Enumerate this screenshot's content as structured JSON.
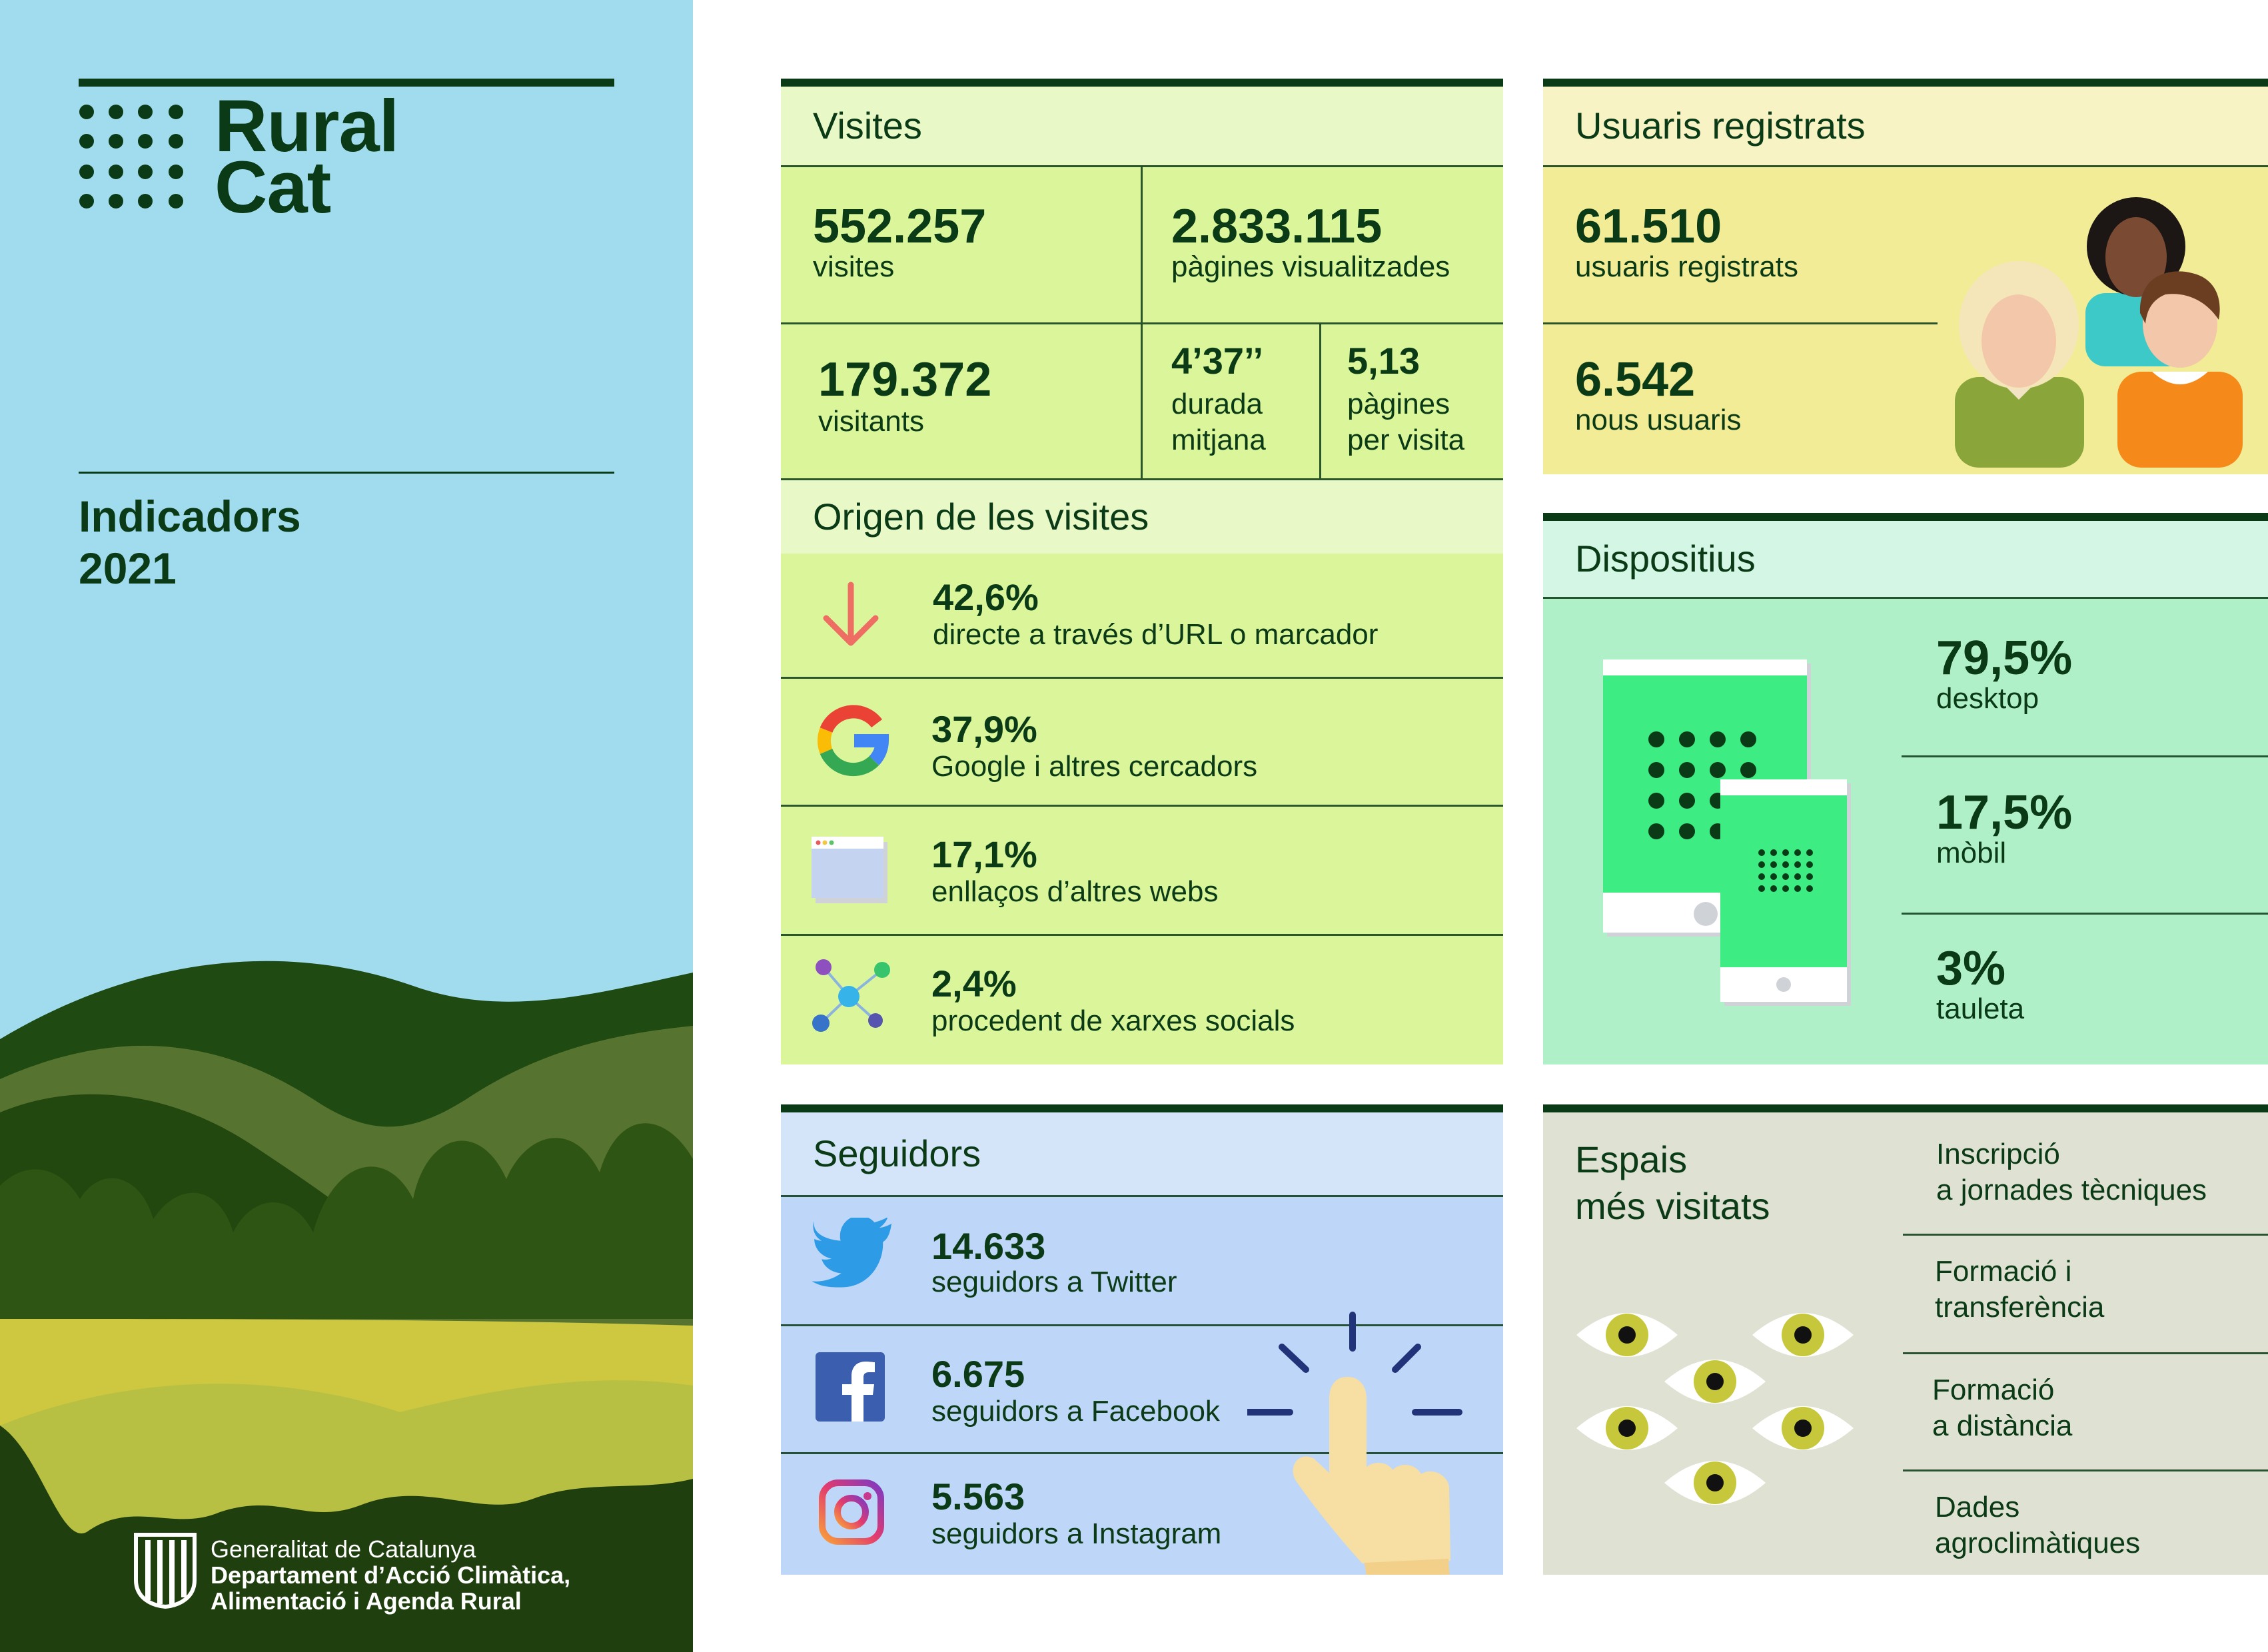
{
  "brand": {
    "name_line1": "Rural",
    "name_line2": "Cat"
  },
  "sidebar": {
    "title_line1": "Indicadors",
    "title_line2": "2021",
    "government": {
      "line1": "Generalitat de Catalunya",
      "line2": "Departament d’Acció Climàtica,",
      "line3": "Alimentació i Agenda Rural"
    }
  },
  "visites": {
    "title": "Visites",
    "visits_value": "552.257",
    "visits_label": "visites",
    "pages_value": "2.833.115",
    "pages_label": "pàgines visualitzades",
    "visitors_value": "179.372",
    "visitors_label": "visitants",
    "duration_value": "4’37’’",
    "duration_label1": "durada",
    "duration_label2": "mitjana",
    "ppv_value": "5,13",
    "ppv_label1": "pàgines",
    "ppv_label2": "per visita"
  },
  "origen": {
    "title": "Origen de les visites",
    "items": [
      {
        "value": "42,6%",
        "label": "directe a través d’URL o marcador",
        "icon": "arrow-down-icon"
      },
      {
        "value": "37,9%",
        "label": "Google i altres cercadors",
        "icon": "google-icon"
      },
      {
        "value": "17,1%",
        "label": "enllaços d’altres webs",
        "icon": "browser-window-icon"
      },
      {
        "value": "2,4%",
        "label": "procedent de xarxes socials",
        "icon": "social-network-icon"
      }
    ]
  },
  "seguidors": {
    "title": "Seguidors",
    "items": [
      {
        "value": "14.633",
        "label": "seguidors a Twitter",
        "icon": "twitter-icon"
      },
      {
        "value": "6.675",
        "label": "seguidors a Facebook",
        "icon": "facebook-icon"
      },
      {
        "value": "5.563",
        "label": "seguidors a Instagram",
        "icon": "instagram-icon"
      }
    ]
  },
  "usuaris": {
    "title": "Usuaris registrats",
    "registered_value": "61.510",
    "registered_label": "usuaris registrats",
    "new_value": "6.542",
    "new_label": "nous usuaris"
  },
  "dispositius": {
    "title": "Dispositius",
    "items": [
      {
        "value": "79,5%",
        "label": "desktop"
      },
      {
        "value": "17,5%",
        "label": "mòbil"
      },
      {
        "value": "3%",
        "label": "tauleta"
      }
    ]
  },
  "espais": {
    "title_line1": "Espais",
    "title_line2": "més visitats",
    "items": [
      {
        "line1": "Inscripció",
        "line2": "a jornades tècniques"
      },
      {
        "line1": "Formació i",
        "line2": "transferència"
      },
      {
        "line1": "Formació",
        "line2": "a distància"
      },
      {
        "line1": "Dades",
        "line2": "agroclimàtiques"
      }
    ]
  },
  "colors": {
    "dark_green": "#0b3a16",
    "sky": "#a0dcee",
    "visites_bg": "#daf59a",
    "usuaris_bg": "#f2ec96",
    "dispositius_bg": "#b0f0c9",
    "seguidors_bg": "#bed6f7",
    "espais_bg": "#dfe2d2"
  }
}
